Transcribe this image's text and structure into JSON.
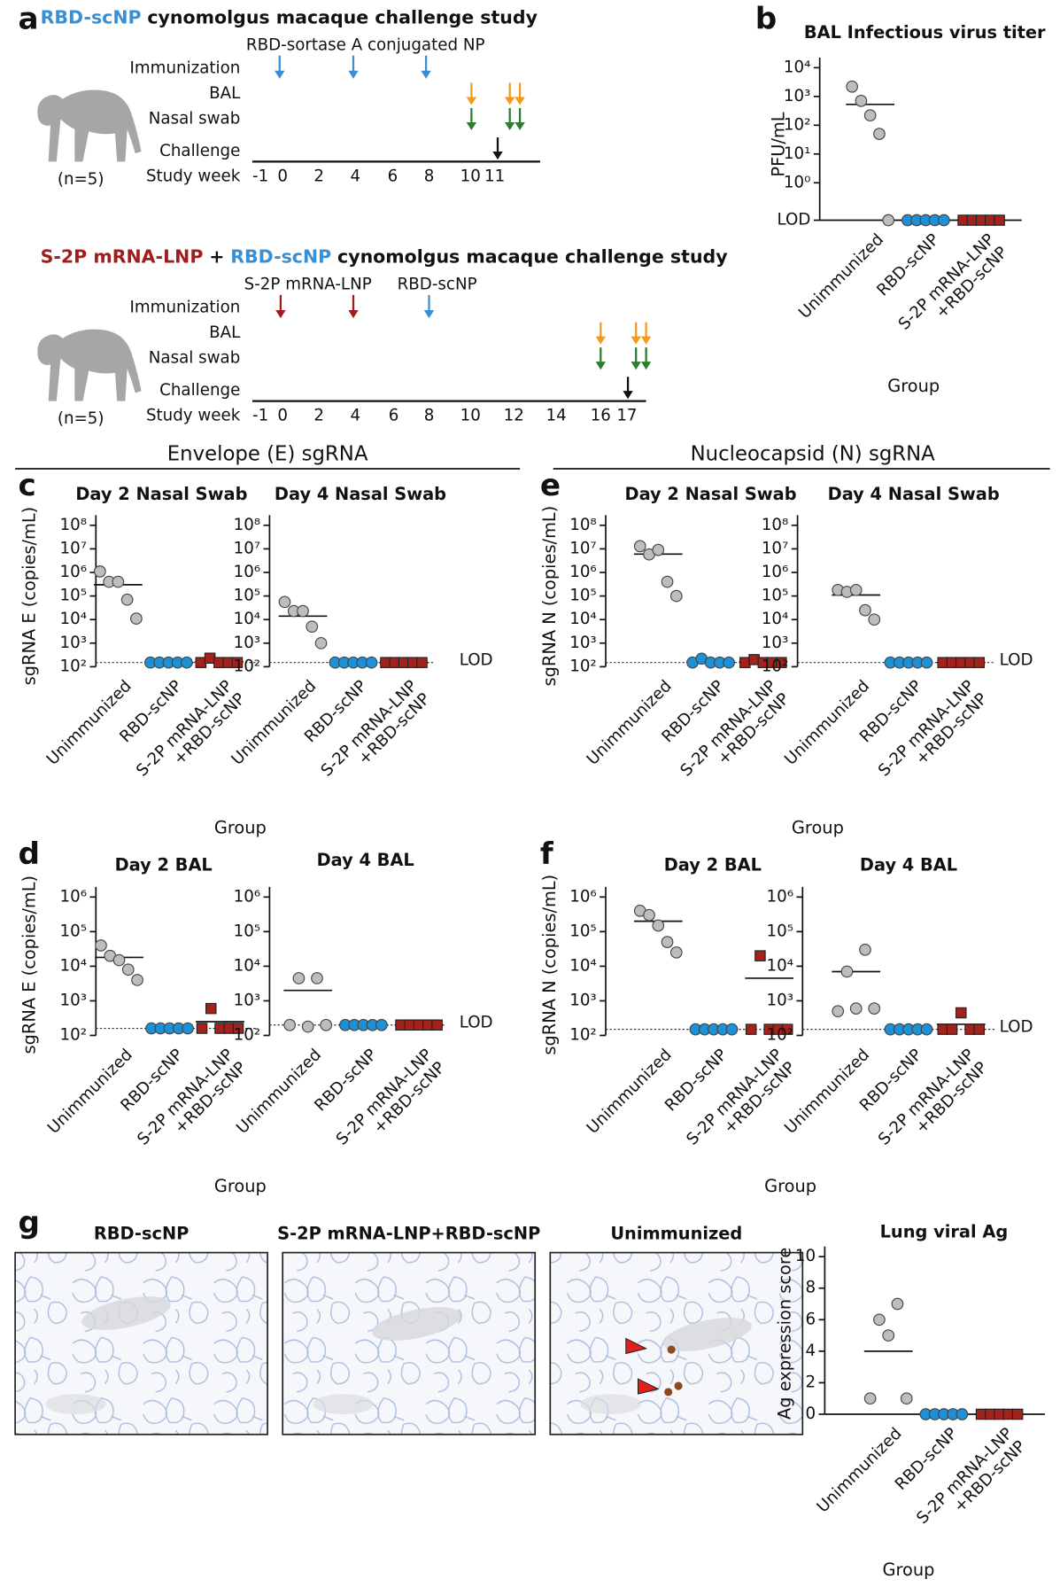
{
  "panel_labels": [
    "a",
    "b",
    "c",
    "d",
    "e",
    "f",
    "g"
  ],
  "panel_a": {
    "study_1": {
      "title_parts": [
        "RBD-scNP",
        "cynomolgus macaque challenge study"
      ],
      "immunogens": [
        "RBD-sortase A conjugated NP"
      ],
      "rows": [
        "Immunization",
        "BAL",
        "Nasal swab",
        "Challenge",
        "Study week"
      ],
      "group_size": "(n=5)",
      "weeks": [
        -1,
        0,
        2,
        4,
        6,
        8,
        10,
        11
      ]
    },
    "study_2": {
      "title_parts": [
        "S-2P mRNA-LNP",
        "+",
        "RBD-scNP",
        "cynomolgus macaque challenge study"
      ],
      "immunogens": [
        "S-2P mRNA-LNP",
        "RBD-scNP"
      ],
      "rows": [
        "Immunization",
        "BAL",
        "Nasal swab",
        "Challenge",
        "Study week"
      ],
      "group_size": "(n=5)",
      "weeks": [
        -1,
        0,
        2,
        4,
        6,
        8,
        10,
        12,
        14,
        16,
        17
      ]
    }
  },
  "section_headers": [
    "Envelope (E) sgRNA",
    "Nucleocapsid (N) sgRNA"
  ],
  "panel_g": {
    "images": [
      "RBD-scNP",
      "S-2P mRNA-LNP+RBD-scNP",
      "Unimmunized"
    ]
  },
  "chart_data": [
    {
      "type": "dot",
      "title": "BAL Infectious virus titer",
      "ylabel": "PFU/mL",
      "xlabel": "Group",
      "log": true,
      "categories": [
        "Unimmunized",
        "RBD-scNP",
        "S-2P mRNA-LNP\n+RBD-scNP"
      ],
      "colors": [
        "#bdbdbd",
        "#1e90d6",
        "#a3221c"
      ],
      "markers": [
        "circle",
        "circle",
        "square"
      ],
      "values": [
        [
          2200,
          700,
          220,
          50,
          0.05
        ],
        [
          0.05,
          0.05,
          0.05,
          0.05,
          0.05
        ],
        [
          0.05,
          0.05,
          0.05,
          0.05,
          0.05
        ]
      ],
      "means": [
        530,
        0.05,
        0.05
      ],
      "ylim": [
        0.05,
        10000
      ],
      "yticks": [
        {
          "value": 0.05,
          "label": "LOD"
        },
        {
          "value": 1,
          "label": "10⁰"
        },
        {
          "value": 10,
          "label": "10¹"
        },
        {
          "value": 100,
          "label": "10²"
        },
        {
          "value": 1000,
          "label": "10³"
        },
        {
          "value": 10000,
          "label": "10⁴"
        }
      ]
    },
    {
      "type": "dot",
      "title": "Day 2 Nasal Swab",
      "ylabel": "sgRNA E (copies/mL)",
      "xlabel": "Group",
      "log": true,
      "lod": 150,
      "categories": [
        "Unimmunized",
        "RBD-scNP",
        "S-2P mRNA-LNP\n+RBD-scNP"
      ],
      "colors": [
        "#bdbdbd",
        "#1e90d6",
        "#a3221c"
      ],
      "markers": [
        "circle",
        "circle",
        "square"
      ],
      "values": [
        [
          1100000,
          400000,
          400000,
          70000,
          11000
        ],
        [
          150,
          150,
          150,
          150,
          150
        ],
        [
          150,
          230,
          150,
          150,
          150
        ]
      ],
      "means": [
        300000,
        150,
        166
      ],
      "ylim": [
        100,
        100000000
      ],
      "yticks": [
        {
          "value": 100,
          "label": "10²"
        },
        {
          "value": 1000,
          "label": "10³"
        },
        {
          "value": 10000,
          "label": "10⁴"
        },
        {
          "value": 100000,
          "label": "10⁵"
        },
        {
          "value": 1000000,
          "label": "10⁶"
        },
        {
          "value": 10000000,
          "label": "10⁷"
        },
        {
          "value": 100000000,
          "label": "10⁸"
        }
      ]
    },
    {
      "type": "dot",
      "title": "Day 4 Nasal Swab",
      "log": true,
      "lod": 150,
      "lod_label": "LOD",
      "categories": [
        "Unimmunized",
        "RBD-scNP",
        "S-2P mRNA-LNP\n+RBD-scNP"
      ],
      "colors": [
        "#bdbdbd",
        "#1e90d6",
        "#a3221c"
      ],
      "markers": [
        "circle",
        "circle",
        "square"
      ],
      "values": [
        [
          56000,
          23000,
          23000,
          5000,
          1000
        ],
        [
          150,
          150,
          150,
          150,
          150
        ],
        [
          150,
          150,
          150,
          150,
          150
        ]
      ],
      "means": [
        14000,
        150,
        150
      ],
      "ylim": [
        100,
        100000000
      ],
      "yticks": [
        {
          "value": 100,
          "label": "10²"
        },
        {
          "value": 1000,
          "label": "10³"
        },
        {
          "value": 10000,
          "label": "10⁴"
        },
        {
          "value": 100000,
          "label": "10⁵"
        },
        {
          "value": 1000000,
          "label": "10⁶"
        },
        {
          "value": 10000000,
          "label": "10⁷"
        },
        {
          "value": 100000000,
          "label": "10⁸"
        }
      ]
    },
    {
      "type": "dot",
      "title": "Day 2 BAL",
      "ylabel": "sgRNA E (copies/mL)",
      "xlabel": "Group",
      "log": true,
      "lod": 160,
      "categories": [
        "Unimmunized",
        "RBD-scNP",
        "S-2P mRNA-LNP\n+RBD-scNP"
      ],
      "colors": [
        "#bdbdbd",
        "#1e90d6",
        "#a3221c"
      ],
      "markers": [
        "circle",
        "circle",
        "square"
      ],
      "values": [
        [
          40000,
          20000,
          15000,
          8000,
          4000
        ],
        [
          160,
          160,
          160,
          160,
          160
        ],
        [
          160,
          600,
          160,
          160,
          160
        ]
      ],
      "means": [
        18000,
        160,
        250
      ],
      "ylim": [
        100,
        1000000
      ],
      "yticks": [
        {
          "value": 100,
          "label": "10²"
        },
        {
          "value": 1000,
          "label": "10³"
        },
        {
          "value": 10000,
          "label": "10⁴"
        },
        {
          "value": 100000,
          "label": "10⁵"
        },
        {
          "value": 1000000,
          "label": "10⁶"
        }
      ]
    },
    {
      "type": "dot",
      "title": "Day 4 BAL",
      "log": true,
      "lod": 200,
      "lod_label": "LOD",
      "categories": [
        "Unimmunized",
        "RBD-scNP",
        "S-2P mRNA-LNP\n+RBD-scNP"
      ],
      "colors": [
        "#bdbdbd",
        "#1e90d6",
        "#a3221c"
      ],
      "markers": [
        "circle",
        "circle",
        "square"
      ],
      "values": [
        [
          200,
          4500,
          180,
          4500,
          200
        ],
        [
          200,
          200,
          200,
          200,
          200
        ],
        [
          200,
          200,
          200,
          200,
          200
        ]
      ],
      "means": [
        2000,
        200,
        200
      ],
      "ylim": [
        100,
        1000000
      ],
      "yticks": [
        {
          "value": 100,
          "label": "10²"
        },
        {
          "value": 1000,
          "label": "10³"
        },
        {
          "value": 10000,
          "label": "10⁴"
        },
        {
          "value": 100000,
          "label": "10⁵"
        },
        {
          "value": 1000000,
          "label": "10⁶"
        }
      ]
    },
    {
      "type": "dot",
      "title": "Day 2 Nasal Swab",
      "ylabel": "sgRNA N (copies/mL)",
      "xlabel": "Group",
      "log": true,
      "lod": 150,
      "categories": [
        "Unimmunized",
        "RBD-scNP",
        "S-2P mRNA-LNP\n+RBD-scNP"
      ],
      "colors": [
        "#bdbdbd",
        "#1e90d6",
        "#a3221c"
      ],
      "markers": [
        "circle",
        "circle",
        "square"
      ],
      "values": [
        [
          13000000,
          5800000,
          9000000,
          400000,
          100000
        ],
        [
          150,
          220,
          150,
          150,
          150
        ],
        [
          150,
          200,
          150,
          150,
          150
        ]
      ],
      "means": [
        6000000,
        160,
        160
      ],
      "ylim": [
        100,
        100000000
      ],
      "yticks": [
        {
          "value": 100,
          "label": "10²"
        },
        {
          "value": 1000,
          "label": "10³"
        },
        {
          "value": 10000,
          "label": "10⁴"
        },
        {
          "value": 100000,
          "label": "10⁵"
        },
        {
          "value": 1000000,
          "label": "10⁶"
        },
        {
          "value": 10000000,
          "label": "10⁷"
        },
        {
          "value": 100000000,
          "label": "10⁸"
        }
      ]
    },
    {
      "type": "dot",
      "title": "Day 4 Nasal Swab",
      "log": true,
      "lod": 150,
      "lod_label": "LOD",
      "categories": [
        "Unimmunized",
        "RBD-scNP",
        "S-2P mRNA-LNP\n+RBD-scNP"
      ],
      "colors": [
        "#bdbdbd",
        "#1e90d6",
        "#a3221c"
      ],
      "markers": [
        "circle",
        "circle",
        "square"
      ],
      "values": [
        [
          180000,
          150000,
          180000,
          25000,
          10000
        ],
        [
          150,
          150,
          150,
          150,
          150
        ],
        [
          150,
          150,
          150,
          150,
          150
        ]
      ],
      "means": [
        110000,
        150,
        150
      ],
      "ylim": [
        100,
        100000000
      ],
      "yticks": [
        {
          "value": 100,
          "label": "10²"
        },
        {
          "value": 1000,
          "label": "10³"
        },
        {
          "value": 10000,
          "label": "10⁴"
        },
        {
          "value": 100000,
          "label": "10⁵"
        },
        {
          "value": 1000000,
          "label": "10⁶"
        },
        {
          "value": 10000000,
          "label": "10⁷"
        },
        {
          "value": 100000000,
          "label": "10⁸"
        }
      ]
    },
    {
      "type": "dot",
      "title": "Day 2 BAL",
      "ylabel": "sgRNA N (copies/mL)",
      "xlabel": "Group",
      "log": true,
      "lod": 150,
      "categories": [
        "Unimmunized",
        "RBD-scNP",
        "S-2P mRNA-LNP\n+RBD-scNP"
      ],
      "colors": [
        "#bdbdbd",
        "#1e90d6",
        "#a3221c"
      ],
      "markers": [
        "circle",
        "circle",
        "square"
      ],
      "values": [
        [
          400000,
          300000,
          150000,
          50000,
          25000
        ],
        [
          150,
          150,
          150,
          150,
          150
        ],
        [
          150,
          20000,
          150,
          150,
          150
        ]
      ],
      "means": [
        200000,
        150,
        4500
      ],
      "ylim": [
        100,
        1000000
      ],
      "yticks": [
        {
          "value": 100,
          "label": "10²"
        },
        {
          "value": 1000,
          "label": "10³"
        },
        {
          "value": 10000,
          "label": "10⁴"
        },
        {
          "value": 100000,
          "label": "10⁵"
        },
        {
          "value": 1000000,
          "label": "10⁶"
        }
      ]
    },
    {
      "type": "dot",
      "title": "Day 4 BAL",
      "log": true,
      "lod": 150,
      "lod_label": "LOD",
      "categories": [
        "Unimmunized",
        "RBD-scNP",
        "S-2P mRNA-LNP\n+RBD-scNP"
      ],
      "colors": [
        "#bdbdbd",
        "#1e90d6",
        "#a3221c"
      ],
      "markers": [
        "circle",
        "circle",
        "square"
      ],
      "values": [
        [
          500,
          7000,
          600,
          30000,
          600
        ],
        [
          150,
          150,
          150,
          150,
          150
        ],
        [
          150,
          150,
          450,
          150,
          150
        ]
      ],
      "means": [
        7000,
        150,
        210
      ],
      "ylim": [
        100,
        1000000
      ],
      "yticks": [
        {
          "value": 100,
          "label": "10²"
        },
        {
          "value": 1000,
          "label": "10³"
        },
        {
          "value": 10000,
          "label": "10⁴"
        },
        {
          "value": 100000,
          "label": "10⁵"
        },
        {
          "value": 1000000,
          "label": "10⁶"
        }
      ]
    },
    {
      "type": "dot",
      "title": "Lung viral Ag",
      "ylabel": "Ag expression score",
      "xlabel": "Group",
      "log": false,
      "categories": [
        "Unimmunized",
        "RBD-scNP",
        "S-2P mRNA-LNP\n+RBD-scNP"
      ],
      "colors": [
        "#bdbdbd",
        "#1e90d6",
        "#a3221c"
      ],
      "markers": [
        "circle",
        "circle",
        "square"
      ],
      "values": [
        [
          1,
          6,
          5,
          7,
          1
        ],
        [
          0,
          0,
          0,
          0,
          0
        ],
        [
          0,
          0,
          0,
          0,
          0
        ]
      ],
      "means": [
        4,
        0,
        0
      ],
      "ylim": [
        0,
        10
      ],
      "yticks": [
        0,
        2,
        4,
        6,
        8,
        10
      ]
    }
  ]
}
